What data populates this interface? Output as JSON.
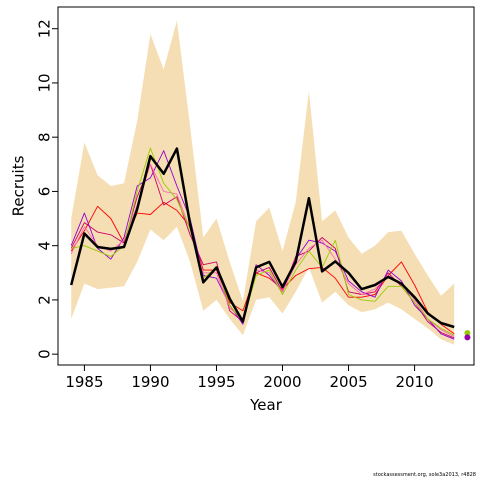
{
  "chart_data": {
    "type": "line",
    "title": "",
    "xlabel": "Year",
    "ylabel": "Recruits",
    "xlim": [
      1983,
      2014.5
    ],
    "ylim": [
      -0.4,
      12.8
    ],
    "xticks": [
      1985,
      1990,
      1995,
      2000,
      2005,
      2010
    ],
    "yticks": [
      0,
      2,
      4,
      6,
      8,
      10,
      12
    ],
    "grid": false,
    "legend": "none",
    "x": [
      1984,
      1985,
      1986,
      1987,
      1988,
      1989,
      1990,
      1991,
      1992,
      1993,
      1994,
      1995,
      1996,
      1997,
      1998,
      1999,
      2000,
      2001,
      2002,
      2003,
      2004,
      2005,
      2006,
      2007,
      2008,
      2009,
      2010,
      2011,
      2012,
      2013
    ],
    "band": {
      "color": "#f5deb3",
      "lower": [
        1.3,
        2.6,
        2.4,
        2.45,
        2.5,
        3.4,
        4.6,
        4.2,
        4.7,
        3.4,
        1.6,
        2.0,
        1.3,
        0.7,
        2.0,
        2.1,
        1.5,
        2.3,
        3.2,
        1.9,
        2.3,
        1.8,
        1.55,
        1.65,
        1.9,
        1.65,
        1.3,
        0.95,
        0.55,
        0.35
      ],
      "upper": [
        5.0,
        7.8,
        6.6,
        6.2,
        6.3,
        8.6,
        11.8,
        10.5,
        12.3,
        8.4,
        4.3,
        5.0,
        3.4,
        1.95,
        4.9,
        5.4,
        3.8,
        5.6,
        9.7,
        4.9,
        5.3,
        4.3,
        3.7,
        4.0,
        4.5,
        4.55,
        3.7,
        2.9,
        2.15,
        2.6
      ]
    },
    "series": [
      {
        "color": "#000000",
        "width": 2.5,
        "values": [
          2.55,
          4.45,
          3.95,
          3.88,
          3.95,
          5.35,
          7.3,
          6.65,
          7.58,
          4.8,
          2.65,
          3.2,
          2.05,
          1.2,
          3.2,
          3.4,
          2.48,
          3.4,
          5.75,
          3.05,
          3.42,
          3.0,
          2.4,
          2.55,
          2.85,
          2.6,
          2.1,
          1.5,
          1.15,
          1.0
        ]
      },
      {
        "color": "#ff0000",
        "width": 0.9,
        "values": [
          3.8,
          4.55,
          5.45,
          5.0,
          4.1,
          5.2,
          5.15,
          5.6,
          5.3,
          4.7,
          3.1,
          3.1,
          1.9,
          1.6,
          3.0,
          2.8,
          2.4,
          2.9,
          3.15,
          3.2,
          2.8,
          2.1,
          2.1,
          2.2,
          2.9,
          3.4,
          2.55,
          1.55,
          1.1,
          0.75
        ]
      },
      {
        "color": "#cc0066",
        "width": 0.9,
        "values": [
          3.9,
          4.85,
          4.5,
          4.4,
          4.1,
          5.8,
          7.0,
          5.5,
          5.8,
          4.4,
          3.3,
          3.4,
          1.6,
          1.2,
          3.0,
          3.2,
          2.3,
          3.6,
          3.8,
          4.3,
          3.9,
          2.3,
          2.2,
          2.3,
          3.0,
          2.5,
          1.9,
          1.2,
          0.8,
          0.6
        ]
      },
      {
        "color": "#9400d3",
        "width": 0.9,
        "values": [
          4.0,
          5.2,
          3.9,
          3.5,
          4.3,
          6.2,
          6.5,
          7.5,
          6.2,
          5.0,
          2.9,
          2.8,
          1.8,
          1.1,
          3.3,
          2.9,
          2.3,
          3.5,
          4.2,
          4.1,
          3.8,
          2.7,
          2.3,
          2.1,
          3.1,
          2.7,
          1.8,
          1.3,
          0.75,
          0.55
        ]
      },
      {
        "color": "#ff69b4",
        "width": 0.9,
        "values": [
          3.7,
          4.7,
          4.0,
          3.8,
          4.2,
          5.5,
          7.0,
          6.0,
          5.9,
          4.6,
          3.0,
          3.0,
          1.7,
          1.3,
          3.1,
          3.0,
          2.3,
          3.3,
          3.9,
          4.2,
          3.5,
          2.6,
          2.2,
          2.4,
          2.9,
          2.6,
          2.0,
          1.3,
          0.9,
          0.65
        ]
      },
      {
        "color": "#99cc00",
        "width": 0.9,
        "values": [
          3.9,
          4.0,
          3.8,
          3.6,
          4.0,
          6.0,
          7.6,
          6.3,
          5.7,
          4.6,
          2.8,
          3.2,
          1.8,
          1.2,
          2.9,
          3.1,
          2.2,
          3.1,
          3.8,
          3.2,
          4.2,
          2.2,
          2.0,
          1.95,
          2.5,
          2.5,
          1.9,
          1.3,
          0.95,
          0.7
        ]
      }
    ],
    "end_points": [
      {
        "x": 2014,
        "y": 0.78,
        "color": "#99cc00"
      },
      {
        "x": 2014,
        "y": 0.62,
        "color": "#9900aa"
      }
    ]
  },
  "footer": {
    "note": "stockassessment.org, sole3a2013, r4828"
  }
}
